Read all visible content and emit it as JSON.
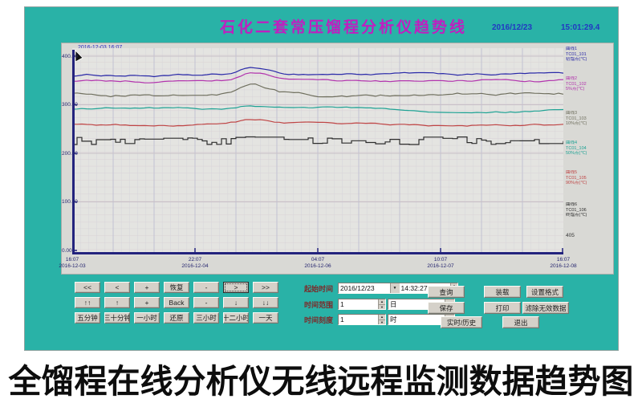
{
  "window": {
    "title": "石化二套常压馏程分析仪趋势线",
    "date": "2016/12/23",
    "time": "15:01:29.4"
  },
  "colors": {
    "window_bg": "#29b2a7",
    "title_text": "#c01ec0",
    "datetime_text": "#2238c2",
    "field_label_text": "#7c2a2a",
    "axis": "#23237d"
  },
  "chart": {
    "cursor_label": "2016-12-03 16:07",
    "y_ticks": [
      "400.00",
      "300.00",
      "200.00",
      "100.00",
      "0.00"
    ],
    "x_ticks": [
      {
        "time": "16:07",
        "date": "2016-12-03"
      },
      {
        "time": "22:07",
        "date": "2016-12-04"
      },
      {
        "time": "04:07",
        "date": "2016-12-06"
      },
      {
        "time": "10:07",
        "date": "2016-12-07"
      },
      {
        "time": "16:07",
        "date": "2016-12-08"
      }
    ],
    "right_value_label": "405",
    "legend": [
      {
        "color": "#2a2aa8",
        "lines": [
          "曲线1",
          "TC01_101",
          "初馏点(℃)"
        ]
      },
      {
        "color": "#b233ad",
        "lines": [
          "曲线2",
          "TC01_102",
          "5%点(℃)"
        ]
      },
      {
        "color": "#6f6f5e",
        "lines": [
          "曲线3",
          "TC01_103",
          "10%点(℃)"
        ]
      },
      {
        "color": "#1ea294",
        "lines": [
          "曲线4",
          "TC01_104",
          "50%点(℃)"
        ]
      },
      {
        "color": "#bf4545",
        "lines": [
          "曲线5",
          "TC01_105",
          "90%点(℃)"
        ]
      },
      {
        "color": "#2d2d2d",
        "lines": [
          "曲线6",
          "TC01_106",
          "终馏点(℃)"
        ]
      }
    ]
  },
  "chart_data": {
    "type": "line",
    "title": "石化二套常压馏程分析仪趋势线",
    "xlabel": "",
    "ylabel": "",
    "ylim": [
      0,
      440
    ],
    "x_range": [
      "2016-12-03 16:07",
      "2016-12-08 16:07"
    ],
    "grid": true,
    "legend_position": "right",
    "series": [
      {
        "name": "初馏点(℃)",
        "tag": "TC01_101",
        "color": "#2a2aa8",
        "avg": 360,
        "amplitude": 6,
        "bump": 15,
        "style": "smooth"
      },
      {
        "name": "5%点(℃)",
        "tag": "TC01_102",
        "color": "#b233ad",
        "avg": 345,
        "amplitude": 6,
        "bump": 17,
        "style": "smooth"
      },
      {
        "name": "10%点(℃)",
        "tag": "TC01_103",
        "color": "#6f6f5e",
        "avg": 327,
        "amplitude": 9,
        "bump": 18,
        "style": "smooth"
      },
      {
        "name": "50%点(℃)",
        "tag": "TC01_104",
        "color": "#1ea294",
        "avg": 290,
        "amplitude": 5,
        "bump": 9,
        "style": "smooth"
      },
      {
        "name": "90%点(℃)",
        "tag": "TC01_105",
        "color": "#bf4545",
        "avg": 258,
        "amplitude": 5,
        "bump": 7,
        "style": "smooth"
      },
      {
        "name": "终馏点(℃)",
        "tag": "TC01_106",
        "color": "#2d2d2d",
        "avg": 226,
        "amplitude": 8,
        "bump": 0,
        "style": "jagged"
      }
    ]
  },
  "controls": {
    "nav": [
      [
        "<<",
        "<",
        "+",
        "恢复",
        "-",
        ">",
        ">>"
      ],
      [
        "↑↑",
        "↑",
        "+",
        "Back",
        "-",
        "↓",
        "↓↓"
      ],
      [
        "五分钟",
        "三十分钟",
        "一小时",
        "还原",
        "三小时",
        "十二小时",
        "一天"
      ]
    ],
    "fields": [
      {
        "label": "起始时间",
        "date": "2016/12/23",
        "time": "14:32:27"
      },
      {
        "label": "时间范围",
        "value": "1",
        "unit": "日"
      },
      {
        "label": "时间刻度",
        "value": "1",
        "unit": "时"
      }
    ],
    "actions": [
      [
        "查询",
        "装载",
        "设置格式"
      ],
      [
        "保存",
        "打印",
        "滤除无效数据"
      ],
      [
        "实时/历史",
        "退出"
      ]
    ]
  },
  "caption": "全馏程在线分析仪无线远程监测数据趋势图"
}
